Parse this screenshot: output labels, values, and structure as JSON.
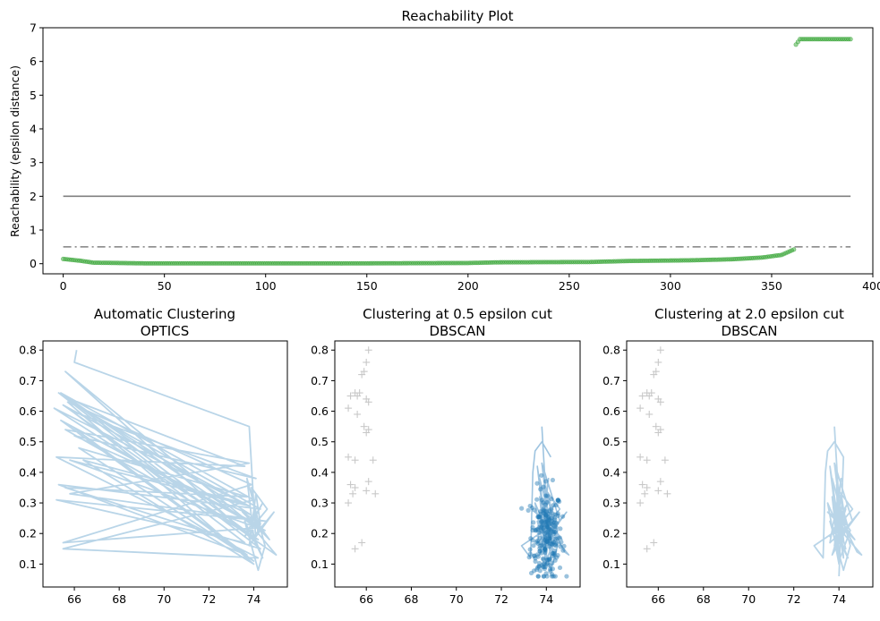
{
  "chart_data": [
    {
      "type": "scatter",
      "title": "Reachability Plot",
      "xlabel": "",
      "ylabel": "Reachability (epsilon distance)",
      "xlim": [
        -10,
        400
      ],
      "ylim": [
        -0.3,
        7.0
      ],
      "xticks": [
        0,
        50,
        100,
        150,
        200,
        250,
        300,
        350,
        400
      ],
      "yticks": [
        0,
        1,
        2,
        3,
        4,
        5,
        6,
        7
      ],
      "reference_lines": [
        {
          "y": 2.0,
          "style": "solid",
          "color": "#808080"
        },
        {
          "y": 0.5,
          "style": "dash-dot",
          "color": "#808080"
        }
      ],
      "series": [
        {
          "color": "#2ca02c",
          "marker_color": "#4daf4a",
          "curve": [
            [
              0,
              0.14
            ],
            [
              8,
              0.09
            ],
            [
              15,
              0.03
            ],
            [
              40,
              0.01
            ],
            [
              150,
              0.01
            ],
            [
              200,
              0.02
            ],
            [
              215,
              0.04
            ],
            [
              260,
              0.05
            ],
            [
              280,
              0.08
            ],
            [
              310,
              0.1
            ],
            [
              330,
              0.13
            ],
            [
              345,
              0.18
            ],
            [
              355,
              0.26
            ],
            [
              361,
              0.42
            ]
          ],
          "x_range": [
            0,
            361
          ]
        },
        {
          "color": "#2ca02c",
          "marker_color": "#4daf4a",
          "curve": [
            [
              362,
              6.5
            ],
            [
              364,
              6.66
            ],
            [
              389,
              6.66
            ]
          ],
          "x_range": [
            362,
            389
          ]
        }
      ]
    },
    {
      "type": "line",
      "title": "Automatic Clustering\nOPTICS",
      "title_lines": [
        "Automatic Clustering",
        "OPTICS"
      ],
      "xlim": [
        64.6,
        75.5
      ],
      "ylim": [
        0.025,
        0.83
      ],
      "xticks": [
        66,
        68,
        70,
        72,
        74
      ],
      "yticks": [
        0.1,
        0.2,
        0.3,
        0.4,
        0.5,
        0.6,
        0.7,
        0.8
      ],
      "line_color": "#b9d5e8",
      "points": [
        [
          66.1,
          0.8
        ],
        [
          66.0,
          0.76
        ],
        [
          73.8,
          0.55
        ],
        [
          74.1,
          0.17
        ],
        [
          65.6,
          0.73
        ],
        [
          73.9,
          0.23
        ],
        [
          65.8,
          0.64
        ],
        [
          73.6,
          0.42
        ],
        [
          65.2,
          0.45
        ],
        [
          74.2,
          0.12
        ],
        [
          65.5,
          0.15
        ],
        [
          74.0,
          0.31
        ],
        [
          65.4,
          0.66
        ],
        [
          73.8,
          0.2
        ],
        [
          66.3,
          0.61
        ],
        [
          74.3,
          0.28
        ],
        [
          65.3,
          0.36
        ],
        [
          73.7,
          0.13
        ],
        [
          65.9,
          0.55
        ],
        [
          74.4,
          0.22
        ],
        [
          65.5,
          0.17
        ],
        [
          73.9,
          0.36
        ],
        [
          65.7,
          0.63
        ],
        [
          74.0,
          0.1
        ],
        [
          66.4,
          0.44
        ],
        [
          73.5,
          0.3
        ],
        [
          65.1,
          0.61
        ],
        [
          74.2,
          0.18
        ],
        [
          65.6,
          0.54
        ],
        [
          73.8,
          0.43
        ],
        [
          65.8,
          0.33
        ],
        [
          74.6,
          0.24
        ],
        [
          65.2,
          0.31
        ],
        [
          73.6,
          0.17
        ],
        [
          65.9,
          0.6
        ],
        [
          74.1,
          0.38
        ],
        [
          66.0,
          0.52
        ],
        [
          73.9,
          0.26
        ],
        [
          65.3,
          0.66
        ],
        [
          74.3,
          0.15
        ],
        [
          65.6,
          0.35
        ],
        [
          73.7,
          0.32
        ],
        [
          66.2,
          0.48
        ],
        [
          74.0,
          0.11
        ],
        [
          65.4,
          0.57
        ],
        [
          74.5,
          0.21
        ],
        [
          65.8,
          0.44
        ],
        [
          73.8,
          0.29
        ],
        [
          65.5,
          0.62
        ],
        [
          74.8,
          0.14
        ],
        [
          75.0,
          0.13
        ],
        [
          74.2,
          0.2
        ],
        [
          73.9,
          0.35
        ],
        [
          74.6,
          0.28
        ],
        [
          73.6,
          0.19
        ],
        [
          74.4,
          0.3
        ],
        [
          74.0,
          0.25
        ],
        [
          74.7,
          0.18
        ],
        [
          73.5,
          0.27
        ],
        [
          74.3,
          0.23
        ],
        [
          74.1,
          0.33
        ],
        [
          73.8,
          0.16
        ],
        [
          74.9,
          0.27
        ],
        [
          74.0,
          0.19
        ],
        [
          73.7,
          0.38
        ],
        [
          74.5,
          0.16
        ],
        [
          74.2,
          0.08
        ],
        [
          73.6,
          0.24
        ],
        [
          74.4,
          0.12
        ],
        [
          73.9,
          0.21
        ]
      ]
    },
    {
      "type": "scatter",
      "title": "Clustering at 0.5 epsilon cut\nDBSCAN",
      "title_lines": [
        "Clustering at 0.5 epsilon cut",
        "DBSCAN"
      ],
      "xlim": [
        64.6,
        75.5
      ],
      "ylim": [
        0.025,
        0.83
      ],
      "xticks": [
        66,
        68,
        70,
        72,
        74
      ],
      "yticks": [
        0.1,
        0.2,
        0.3,
        0.4,
        0.5,
        0.6,
        0.7,
        0.8
      ],
      "noise_color": "#c8c8c8",
      "cluster_color": "#1f77b4",
      "cluster_line_color": "#9ec4e0",
      "noise": [
        [
          66.1,
          0.8
        ],
        [
          66.0,
          0.76
        ],
        [
          65.9,
          0.73
        ],
        [
          65.8,
          0.72
        ],
        [
          65.6,
          0.65
        ],
        [
          65.5,
          0.66
        ],
        [
          65.7,
          0.66
        ],
        [
          66.0,
          0.64
        ],
        [
          66.1,
          0.63
        ],
        [
          65.3,
          0.65
        ],
        [
          65.2,
          0.61
        ],
        [
          65.6,
          0.59
        ],
        [
          65.9,
          0.55
        ],
        [
          66.1,
          0.54
        ],
        [
          66.0,
          0.53
        ],
        [
          65.2,
          0.45
        ],
        [
          65.5,
          0.44
        ],
        [
          66.3,
          0.44
        ],
        [
          65.3,
          0.36
        ],
        [
          65.5,
          0.35
        ],
        [
          65.4,
          0.33
        ],
        [
          66.1,
          0.37
        ],
        [
          66.0,
          0.34
        ],
        [
          66.4,
          0.33
        ],
        [
          65.2,
          0.3
        ],
        [
          65.8,
          0.17
        ],
        [
          65.5,
          0.15
        ]
      ],
      "cluster_line": [
        [
          73.8,
          0.55
        ],
        [
          74.1,
          0.17
        ],
        [
          73.9,
          0.23
        ],
        [
          73.6,
          0.42
        ],
        [
          74.2,
          0.12
        ],
        [
          74.0,
          0.31
        ],
        [
          73.8,
          0.2
        ],
        [
          74.3,
          0.28
        ],
        [
          73.7,
          0.13
        ],
        [
          74.4,
          0.22
        ],
        [
          73.9,
          0.36
        ],
        [
          74.0,
          0.1
        ],
        [
          73.5,
          0.3
        ],
        [
          74.2,
          0.18
        ],
        [
          73.8,
          0.43
        ],
        [
          74.6,
          0.24
        ],
        [
          73.6,
          0.17
        ],
        [
          74.1,
          0.38
        ],
        [
          73.9,
          0.26
        ],
        [
          74.3,
          0.15
        ],
        [
          73.7,
          0.32
        ],
        [
          74.0,
          0.11
        ],
        [
          74.5,
          0.21
        ],
        [
          73.8,
          0.29
        ],
        [
          74.8,
          0.14
        ],
        [
          75.0,
          0.13
        ],
        [
          74.2,
          0.2
        ],
        [
          73.9,
          0.35
        ],
        [
          74.6,
          0.28
        ],
        [
          73.6,
          0.19
        ],
        [
          74.4,
          0.3
        ],
        [
          74.0,
          0.25
        ],
        [
          74.7,
          0.18
        ],
        [
          73.5,
          0.27
        ],
        [
          74.3,
          0.23
        ],
        [
          74.1,
          0.33
        ],
        [
          73.8,
          0.16
        ],
        [
          74.9,
          0.27
        ],
        [
          74.0,
          0.19
        ],
        [
          73.7,
          0.38
        ],
        [
          74.5,
          0.16
        ],
        [
          74.2,
          0.08
        ],
        [
          73.6,
          0.24
        ],
        [
          74.4,
          0.12
        ],
        [
          73.9,
          0.21
        ],
        [
          72.9,
          0.16
        ],
        [
          73.3,
          0.12
        ],
        [
          73.4,
          0.4
        ],
        [
          73.5,
          0.47
        ],
        [
          73.6,
          0.48
        ],
        [
          73.8,
          0.5
        ],
        [
          74.2,
          0.45
        ]
      ],
      "cluster_points_count": 220,
      "cluster_spread": {
        "x_center": 74.0,
        "x_sd": 0.35,
        "y_center": 0.19,
        "y_sd": 0.08,
        "y_min": 0.06,
        "y_max": 0.55
      }
    },
    {
      "type": "line",
      "title": "Clustering at 2.0 epsilon cut\nDBSCAN",
      "title_lines": [
        "Clustering at 2.0 epsilon cut",
        "DBSCAN"
      ],
      "xlim": [
        64.6,
        75.5
      ],
      "ylim": [
        0.025,
        0.83
      ],
      "xticks": [
        66,
        68,
        70,
        72,
        74
      ],
      "yticks": [
        0.1,
        0.2,
        0.3,
        0.4,
        0.5,
        0.6,
        0.7,
        0.8
      ],
      "noise_color": "#c8c8c8",
      "line_color": "#b9d5e8",
      "noise": [
        [
          66.1,
          0.8
        ],
        [
          66.0,
          0.76
        ],
        [
          65.9,
          0.73
        ],
        [
          65.8,
          0.72
        ],
        [
          65.6,
          0.65
        ],
        [
          65.5,
          0.66
        ],
        [
          65.7,
          0.66
        ],
        [
          66.0,
          0.64
        ],
        [
          66.1,
          0.63
        ],
        [
          65.3,
          0.65
        ],
        [
          65.2,
          0.61
        ],
        [
          65.6,
          0.59
        ],
        [
          65.9,
          0.55
        ],
        [
          66.1,
          0.54
        ],
        [
          66.0,
          0.53
        ],
        [
          65.2,
          0.45
        ],
        [
          65.5,
          0.44
        ],
        [
          66.3,
          0.44
        ],
        [
          65.3,
          0.36
        ],
        [
          65.5,
          0.35
        ],
        [
          65.4,
          0.33
        ],
        [
          66.1,
          0.37
        ],
        [
          66.0,
          0.34
        ],
        [
          66.4,
          0.33
        ],
        [
          65.2,
          0.3
        ],
        [
          65.8,
          0.17
        ],
        [
          65.5,
          0.15
        ]
      ],
      "points": [
        [
          73.8,
          0.55
        ],
        [
          74.1,
          0.17
        ],
        [
          73.9,
          0.23
        ],
        [
          73.6,
          0.42
        ],
        [
          74.2,
          0.12
        ],
        [
          74.0,
          0.31
        ],
        [
          73.8,
          0.2
        ],
        [
          74.3,
          0.28
        ],
        [
          73.7,
          0.13
        ],
        [
          74.4,
          0.22
        ],
        [
          73.9,
          0.36
        ],
        [
          74.0,
          0.1
        ],
        [
          73.5,
          0.3
        ],
        [
          74.2,
          0.18
        ],
        [
          73.8,
          0.43
        ],
        [
          74.6,
          0.24
        ],
        [
          73.6,
          0.17
        ],
        [
          74.1,
          0.38
        ],
        [
          73.9,
          0.26
        ],
        [
          74.3,
          0.15
        ],
        [
          73.7,
          0.32
        ],
        [
          74.0,
          0.11
        ],
        [
          74.5,
          0.21
        ],
        [
          73.8,
          0.29
        ],
        [
          74.8,
          0.14
        ],
        [
          75.0,
          0.13
        ],
        [
          74.2,
          0.2
        ],
        [
          73.9,
          0.35
        ],
        [
          74.6,
          0.28
        ],
        [
          73.6,
          0.19
        ],
        [
          74.4,
          0.3
        ],
        [
          74.0,
          0.25
        ],
        [
          74.7,
          0.18
        ],
        [
          73.5,
          0.27
        ],
        [
          74.3,
          0.23
        ],
        [
          74.1,
          0.33
        ],
        [
          73.8,
          0.16
        ],
        [
          74.9,
          0.27
        ],
        [
          74.0,
          0.19
        ],
        [
          73.7,
          0.38
        ],
        [
          74.5,
          0.16
        ],
        [
          74.2,
          0.08
        ],
        [
          73.6,
          0.24
        ],
        [
          74.4,
          0.12
        ],
        [
          73.9,
          0.21
        ],
        [
          72.9,
          0.16
        ],
        [
          73.3,
          0.12
        ],
        [
          73.4,
          0.4
        ],
        [
          73.5,
          0.47
        ],
        [
          73.6,
          0.48
        ],
        [
          73.8,
          0.5
        ],
        [
          74.2,
          0.45
        ],
        [
          74.0,
          0.06
        ]
      ]
    }
  ]
}
